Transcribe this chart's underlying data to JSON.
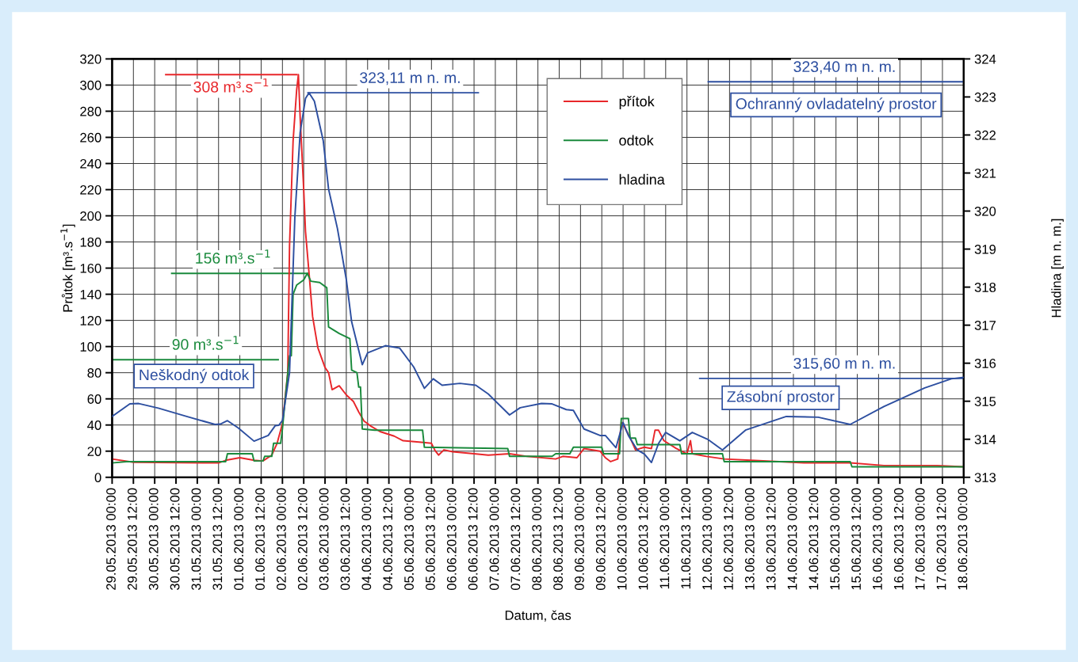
{
  "chart_data": {
    "type": "line",
    "xlabel": "Datum, čas",
    "ylabel": "Průtok [m³.s$^{−1}$]",
    "y2label": "Hladina [m n. m.]",
    "xlim": [
      "2013-05-29T00:00",
      "2013-06-18T00:00"
    ],
    "xticks": [
      {
        "value": "2013-05-29T00:00",
        "label": "29.05.2013 00:00"
      },
      {
        "value": "2013-05-29T12:00",
        "label": "29.05.2013 12:00"
      },
      {
        "value": "2013-05-30T00:00",
        "label": "30.05.2013 00:00"
      },
      {
        "value": "2013-05-30T12:00",
        "label": "30.05.2013 12:00"
      },
      {
        "value": "2013-05-31T00:00",
        "label": "31.05.2013 00:00"
      },
      {
        "value": "2013-05-31T12:00",
        "label": "31.05.2013 12:00"
      },
      {
        "value": "2013-06-01T00:00",
        "label": "01.06.2013 00:00"
      },
      {
        "value": "2013-06-01T12:00",
        "label": "01.06.2013 12:00"
      },
      {
        "value": "2013-06-02T00:00",
        "label": "02.06.2013 00:00"
      },
      {
        "value": "2013-06-02T12:00",
        "label": "02.06.2013 12:00"
      },
      {
        "value": "2013-06-03T00:00",
        "label": "03.06.2013 00:00"
      },
      {
        "value": "2013-06-03T12:00",
        "label": "03.06.2013 12:00"
      },
      {
        "value": "2013-06-04T00:00",
        "label": "04.06.2013 00:00"
      },
      {
        "value": "2013-06-04T12:00",
        "label": "04.06.2013 12:00"
      },
      {
        "value": "2013-06-05T00:00",
        "label": "05.06.2013 00:00"
      },
      {
        "value": "2013-06-05T12:00",
        "label": "05.06.2013 12:00"
      },
      {
        "value": "2013-06-06T00:00",
        "label": "06.06.2013 00:00"
      },
      {
        "value": "2013-06-06T12:00",
        "label": "06.06.2013 12:00"
      },
      {
        "value": "2013-06-07T00:00",
        "label": "07.06.2013 00:00"
      },
      {
        "value": "2013-06-07T12:00",
        "label": "07.06.2013 12:00"
      },
      {
        "value": "2013-06-08T00:00",
        "label": "08.06.2013 00:00"
      },
      {
        "value": "2013-06-08T12:00",
        "label": "08.06.2013 12:00"
      },
      {
        "value": "2013-06-09T00:00",
        "label": "09.06.2013 00:00"
      },
      {
        "value": "2013-06-09T12:00",
        "label": "09.06.2013 12:00"
      },
      {
        "value": "2013-06-10T00:00",
        "label": "10.06.2013 00:00"
      },
      {
        "value": "2013-06-10T12:00",
        "label": "10.06.2013 12:00"
      },
      {
        "value": "2013-06-11T00:00",
        "label": "11.06.2013 00:00"
      },
      {
        "value": "2013-06-11T12:00",
        "label": "11.06.2013 12:00"
      },
      {
        "value": "2013-06-12T00:00",
        "label": "12.06.2013 00:00"
      },
      {
        "value": "2013-06-12T12:00",
        "label": "12.06.2013 12:00"
      },
      {
        "value": "2013-06-13T00:00",
        "label": "13.06.2013 00:00"
      },
      {
        "value": "2013-06-13T12:00",
        "label": "13.06.2013 12:00"
      },
      {
        "value": "2013-06-14T00:00",
        "label": "14.06.2013 00:00"
      },
      {
        "value": "2013-06-14T12:00",
        "label": "14.06.2013 12:00"
      },
      {
        "value": "2013-06-15T00:00",
        "label": "15.06.2013 00:00"
      },
      {
        "value": "2013-06-15T12:00",
        "label": "15.06.2013 12:00"
      },
      {
        "value": "2013-06-16T00:00",
        "label": "16.06.2013 00:00"
      },
      {
        "value": "2013-06-16T12:00",
        "label": "16.06.2013 12:00"
      },
      {
        "value": "2013-06-17T00:00",
        "label": "17.06.2013 00:00"
      },
      {
        "value": "2013-06-17T12:00",
        "label": "17.06.2013 12:00"
      },
      {
        "value": "2013-06-18T00:00",
        "label": "18.06.2013 00:00"
      }
    ],
    "ylim": [
      0,
      320
    ],
    "yticks": [
      0,
      20,
      40,
      60,
      80,
      100,
      120,
      140,
      160,
      180,
      200,
      220,
      240,
      260,
      280,
      300,
      320
    ],
    "y2lim": [
      313,
      324
    ],
    "y2ticks": [
      313,
      314,
      315,
      316,
      317,
      318,
      319,
      320,
      321,
      322,
      323,
      324
    ],
    "grid": true,
    "legend": "top",
    "marker": "none",
    "line_style": "solid",
    "series": [
      {
        "name": "přítok",
        "color": "#e8262a",
        "x": [
          "2013-05-29T00:00",
          "2013-05-29T12:00",
          "2013-05-31T12:00",
          "2013-05-31T16:00",
          "2013-06-01T00:00",
          "2013-06-01T08:00",
          "2013-06-01T13:00",
          "2013-06-01T18:00",
          "2013-06-01T21:00",
          "2013-06-02T00:00",
          "2013-06-02T03:00",
          "2013-06-02T04:00",
          "2013-06-02T06:00",
          "2013-06-02T08:00",
          "2013-06-02T09:00",
          "2013-06-02T10:00",
          "2013-06-02T12:00",
          "2013-06-02T13:00",
          "2013-06-02T15:00",
          "2013-06-02T17:00",
          "2013-06-02T20:00",
          "2013-06-03T00:00",
          "2013-06-03T02:00",
          "2013-06-03T04:00",
          "2013-06-03T08:00",
          "2013-06-03T12:00",
          "2013-06-03T16:00",
          "2013-06-03T19:00",
          "2013-06-03T22:00",
          "2013-06-04T02:00",
          "2013-06-04T07:00",
          "2013-06-04T15:00",
          "2013-06-04T20:00",
          "2013-06-05T05:00",
          "2013-06-05T12:00",
          "2013-06-05T14:00",
          "2013-06-05T16:00",
          "2013-06-05T19:00",
          "2013-06-06T00:00",
          "2013-06-06T12:00",
          "2013-06-06T20:00",
          "2013-06-07T08:00",
          "2013-06-07T18:00",
          "2013-06-08T10:00",
          "2013-06-08T14:00",
          "2013-06-08T22:00",
          "2013-06-09T02:00",
          "2013-06-09T11:00",
          "2013-06-09T14:00",
          "2013-06-09T17:00",
          "2013-06-09T21:00",
          "2013-06-09T23:00",
          "2013-06-10T01:00",
          "2013-06-10T04:00",
          "2013-06-10T07:00",
          "2013-06-10T12:00",
          "2013-06-10T16:00",
          "2013-06-10T18:00",
          "2013-06-10T20:00",
          "2013-06-10T23:00",
          "2013-06-11T06:00",
          "2013-06-11T12:00",
          "2013-06-11T14:00",
          "2013-06-11T15:00",
          "2013-06-11T23:00",
          "2013-06-12T09:00",
          "2013-06-13T00:00",
          "2013-06-14T06:00",
          "2013-06-15T08:00",
          "2013-06-16T03:00",
          "2013-06-17T09:00",
          "2013-06-18T00:00"
        ],
        "values": [
          14,
          11.5,
          11,
          13,
          15,
          13,
          12.5,
          17,
          26,
          41,
          80,
          177,
          257,
          296,
          308,
          275,
          220,
          188,
          156,
          123,
          99,
          84,
          80,
          67,
          70,
          63,
          58,
          50,
          43,
          39,
          35,
          31.5,
          28,
          27,
          26,
          20.5,
          17,
          21,
          19.5,
          18,
          17,
          18,
          16,
          14,
          16,
          15,
          22,
          20,
          15,
          12,
          14,
          42,
          38,
          30,
          21,
          23,
          22,
          36,
          36,
          28,
          22,
          18,
          28,
          18,
          16,
          14,
          13,
          11,
          11,
          9,
          9,
          8
        ]
      },
      {
        "name": "odtok",
        "color": "#1a8a3c",
        "x": [
          "2013-05-29T00:00",
          "2013-05-29T08:00",
          "2013-05-31T16:00",
          "2013-05-31T17:00",
          "2013-06-01T07:00",
          "2013-06-01T08:00",
          "2013-06-01T13:00",
          "2013-06-01T14:00",
          "2013-06-01T18:00",
          "2013-06-01T19:00",
          "2013-06-01T23:00",
          "2013-06-02T00:00",
          "2013-06-02T02:00",
          "2013-06-02T04:00",
          "2013-06-02T05:00",
          "2013-06-02T06:00",
          "2013-06-02T08:00",
          "2013-06-02T12:00",
          "2013-06-02T14:00",
          "2013-06-02T16:00",
          "2013-06-02T21:00",
          "2013-06-03T01:00",
          "2013-06-03T02:00",
          "2013-06-03T08:00",
          "2013-06-03T14:00",
          "2013-06-03T15:00",
          "2013-06-03T18:00",
          "2013-06-03T19:00",
          "2013-06-03T20:00",
          "2013-06-03T21:00",
          "2013-06-04T04:00",
          "2013-06-05T07:00",
          "2013-06-05T08:00",
          "2013-06-07T07:00",
          "2013-06-07T08:00",
          "2013-06-08T08:00",
          "2013-06-08T10:00",
          "2013-06-08T18:00",
          "2013-06-08T20:00",
          "2013-06-09T12:00",
          "2013-06-09T13:00",
          "2013-06-09T22:00",
          "2013-06-09T23:00",
          "2013-06-10T03:00",
          "2013-06-10T04:00",
          "2013-06-10T07:00",
          "2013-06-10T08:00",
          "2013-06-11T08:00",
          "2013-06-11T09:00",
          "2013-06-12T08:00",
          "2013-06-12T09:00",
          "2013-06-15T08:00",
          "2013-06-15T09:00",
          "2013-06-18T00:00"
        ],
        "values": [
          11,
          12,
          12,
          18,
          18,
          12.5,
          12.5,
          16,
          16,
          26,
          26,
          37,
          66,
          93,
          93,
          140,
          147,
          151,
          156,
          150,
          149,
          145,
          115,
          110,
          106,
          82,
          80,
          69,
          69,
          37,
          36,
          36,
          23,
          22,
          16,
          16,
          18,
          18,
          23,
          23,
          18,
          18,
          45,
          45,
          30,
          30,
          25,
          25,
          18,
          18,
          12,
          12,
          8,
          8
        ]
      },
      {
        "name": "hladina",
        "color": "#2d4fa0",
        "axis": "y2",
        "x": [
          "2013-05-29T00:00",
          "2013-05-29T10:00",
          "2013-05-29T15:00",
          "2013-05-30T02:00",
          "2013-05-30T18:00",
          "2013-05-31T10:00",
          "2013-05-31T13:00",
          "2013-05-31T17:00",
          "2013-05-31T23:00",
          "2013-06-01T08:00",
          "2013-06-01T16:00",
          "2013-06-01T20:00",
          "2013-06-01T22:00",
          "2013-06-02T00:00",
          "2013-06-02T04:00",
          "2013-06-02T07:00",
          "2013-06-02T10:00",
          "2013-06-02T13:00",
          "2013-06-02T15:00",
          "2013-06-02T18:00",
          "2013-06-02T23:00",
          "2013-06-03T02:00",
          "2013-06-03T07:00",
          "2013-06-03T12:00",
          "2013-06-03T15:00",
          "2013-06-03T21:00",
          "2013-06-04T00:00",
          "2013-06-04T10:00",
          "2013-06-04T18:00",
          "2013-06-05T02:00",
          "2013-06-05T08:00",
          "2013-06-05T13:00",
          "2013-06-05T18:00",
          "2013-06-06T04:00",
          "2013-06-06T13:00",
          "2013-06-06T20:00",
          "2013-06-07T08:00",
          "2013-06-07T14:00",
          "2013-06-08T02:00",
          "2013-06-08T08:00",
          "2013-06-08T16:00",
          "2013-06-08T20:00",
          "2013-06-09T02:00",
          "2013-06-09T11:00",
          "2013-06-09T14:00",
          "2013-06-09T20:00",
          "2013-06-10T00:00",
          "2013-06-10T03:00",
          "2013-06-10T08:00",
          "2013-06-10T12:00",
          "2013-06-10T16:00",
          "2013-06-10T20:00",
          "2013-06-11T00:00",
          "2013-06-11T08:00",
          "2013-06-11T15:00",
          "2013-06-12T00:00",
          "2013-06-12T08:00",
          "2013-06-12T21:00",
          "2013-06-13T20:00",
          "2013-06-14T14:00",
          "2013-06-15T08:00",
          "2013-06-16T03:00",
          "2013-06-17T02:00",
          "2013-06-17T17:00",
          "2013-06-18T00:00"
        ],
        "values": [
          314.6,
          314.93,
          314.94,
          314.82,
          314.6,
          314.39,
          314.4,
          314.49,
          314.3,
          313.95,
          314.1,
          314.36,
          314.37,
          314.49,
          315.75,
          319.84,
          322.07,
          322.96,
          323.11,
          322.89,
          321.85,
          320.58,
          319.54,
          318.2,
          317.09,
          315.96,
          316.27,
          316.46,
          316.4,
          315.9,
          315.34,
          315.59,
          315.42,
          315.47,
          315.42,
          315.19,
          314.64,
          314.83,
          314.94,
          314.93,
          314.78,
          314.76,
          314.27,
          314.1,
          314.1,
          313.78,
          314.44,
          314.1,
          313.72,
          313.61,
          313.39,
          313.89,
          314.18,
          313.96,
          314.18,
          313.99,
          313.72,
          314.24,
          314.6,
          314.58,
          314.39,
          314.86,
          315.35,
          315.59,
          315.63
        ]
      }
    ],
    "ref_lines": [
      {
        "axis": "y",
        "value": 90,
        "label": "90 m³.s$^{−1}$",
        "color": "#1a8a3c"
      },
      {
        "axis": "y",
        "value": 156,
        "label": "156 m³.s$^{−1}$",
        "color": "#1a8a3c"
      },
      {
        "axis": "y",
        "value": 308,
        "label": "308 m³.s$^{−1}$",
        "color": "#e8262a"
      },
      {
        "axis": "y2",
        "value": 323.11,
        "label": "323,11 m n. m.",
        "color": "#2d4fa0"
      },
      {
        "axis": "y2",
        "value": 323.4,
        "label": "323,40 m n. m.",
        "color": "#2d4fa0"
      },
      {
        "axis": "y2",
        "value": 315.6,
        "label": "315,60 m n. m.",
        "color": "#2d4fa0"
      }
    ],
    "annotations": [
      "Neškodný odtok",
      "Ochranný ovladatelný prostor",
      "Zásobní prostor"
    ]
  }
}
